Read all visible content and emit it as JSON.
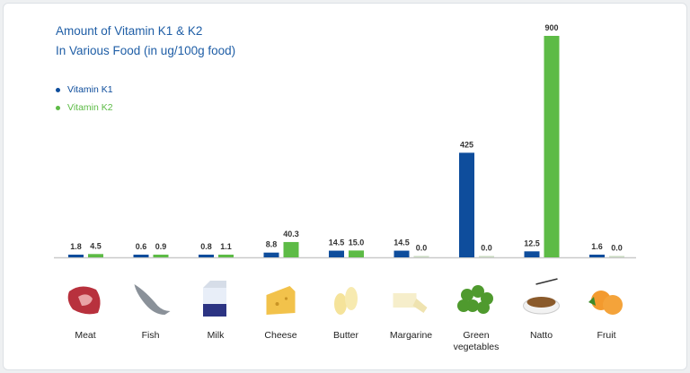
{
  "chart_data": {
    "type": "bar",
    "title": "Amount of Vitamin K1 & K2",
    "subtitle": "In Various Food (in ug/100g food)",
    "categories": [
      "Meat",
      "Fish",
      "Milk",
      "Cheese",
      "Butter",
      "Margarine",
      "Green vegetables",
      "Natto",
      "Fruit"
    ],
    "series": [
      {
        "name": "Vitamin K1",
        "color": "#0e4d9c",
        "values": [
          1.8,
          0.6,
          0.8,
          8.8,
          14.5,
          14.5,
          425,
          12.5,
          1.6
        ],
        "labels": [
          "1.8",
          "0.6",
          "0.8",
          "8.8",
          "14.5",
          "14.5",
          "425",
          "12.5",
          "1.6"
        ]
      },
      {
        "name": "Vitamin K2",
        "color": "#5dbb46",
        "values": [
          4.5,
          0.9,
          1.1,
          40.3,
          15.0,
          0.0,
          0.0,
          900,
          0.0
        ],
        "labels": [
          "4.5",
          "0.9",
          "1.1",
          "40.3",
          "15.0",
          "0.0",
          "0.0",
          "900",
          "0.0"
        ]
      }
    ],
    "legend_position": "top-left",
    "grid": false,
    "ylim": [
      0,
      900
    ],
    "food_icons": [
      "meat-icon",
      "fish-icon",
      "milk-icon",
      "cheese-icon",
      "butter-icon",
      "margarine-icon",
      "green-vegetables-icon",
      "natto-icon",
      "fruit-icon"
    ]
  }
}
